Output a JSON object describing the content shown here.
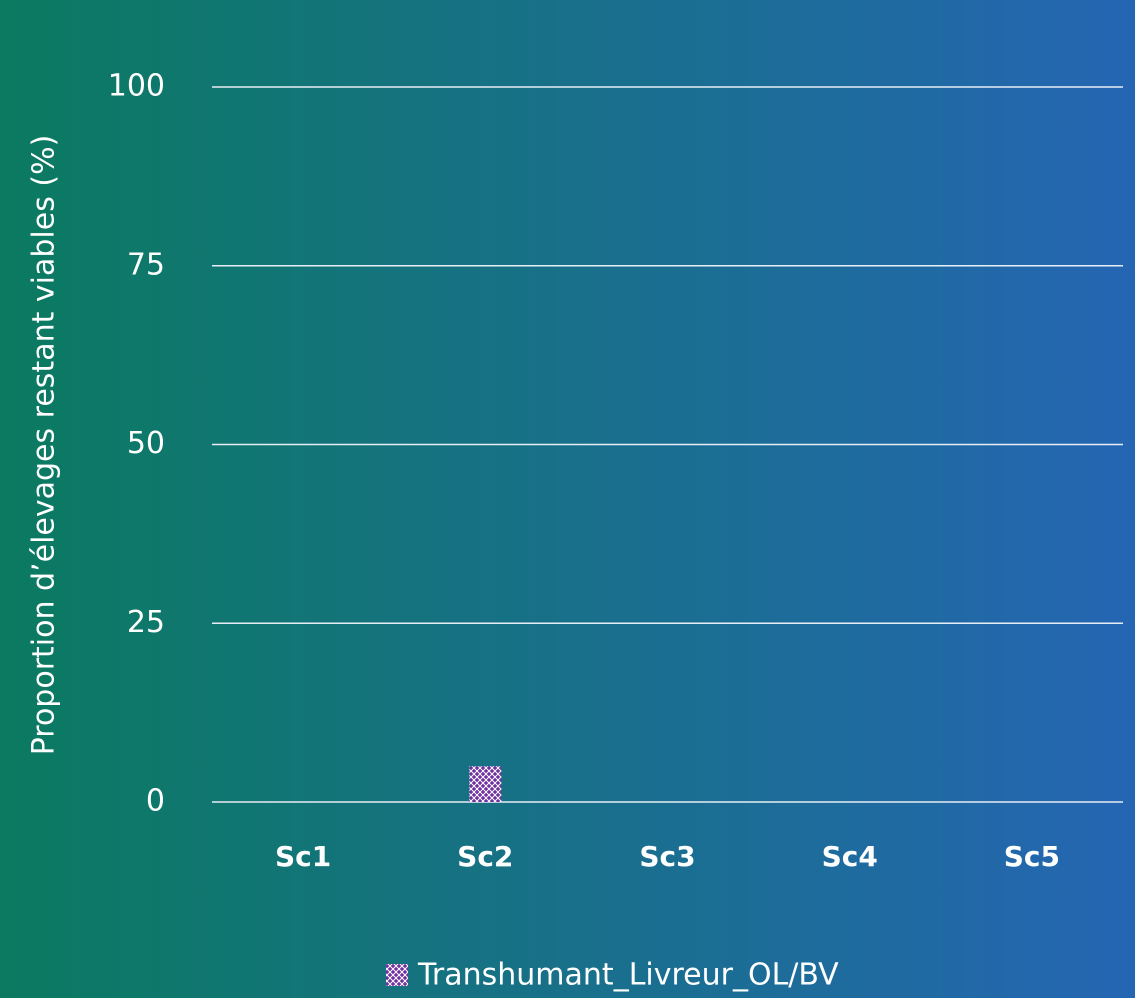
{
  "chart_data": {
    "type": "bar",
    "y_axis_label": "Proportion d’élevages restant viables (%)",
    "categories": [
      "Sc1",
      "Sc2",
      "Sc3",
      "Sc4",
      "Sc5"
    ],
    "series": [
      {
        "name": "Transhumant_Livreur_OL/BV",
        "color": "#7030a0",
        "values": [
          0,
          5,
          0,
          0,
          0
        ]
      }
    ],
    "ylim": [
      0,
      100
    ],
    "yticks": [
      0,
      25,
      50,
      75,
      100
    ],
    "grid": true,
    "legend": "bottom"
  }
}
